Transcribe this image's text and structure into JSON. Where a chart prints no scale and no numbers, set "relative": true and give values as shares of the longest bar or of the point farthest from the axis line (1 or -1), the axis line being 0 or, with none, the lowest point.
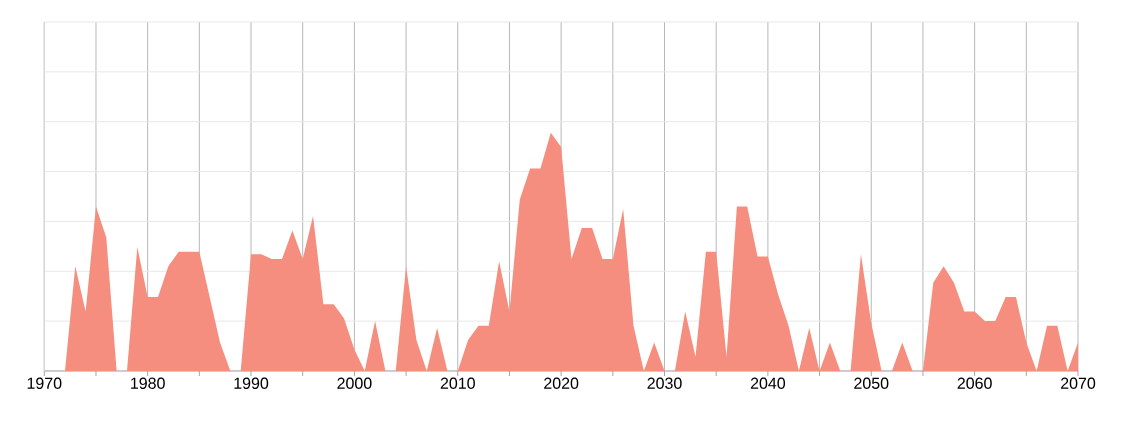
{
  "chart_data": {
    "type": "area",
    "relative": true,
    "color": "#f58e7e",
    "grid": true,
    "x": [
      1970,
      1971,
      1972,
      1973,
      1974,
      1975,
      1976,
      1977,
      1978,
      1979,
      1980,
      1981,
      1982,
      1983,
      1984,
      1985,
      1986,
      1987,
      1988,
      1989,
      1990,
      1991,
      1992,
      1993,
      1994,
      1995,
      1996,
      1997,
      1998,
      1999,
      2000,
      2001,
      2002,
      2003,
      2004,
      2005,
      2006,
      2007,
      2008,
      2009,
      2010,
      2011,
      2012,
      2013,
      2014,
      2015,
      2016,
      2017,
      2018,
      2019,
      2020,
      2021,
      2022,
      2023,
      2024,
      2025,
      2026,
      2027,
      2028,
      2029,
      2030,
      2031,
      2032,
      2033,
      2034,
      2035,
      2036,
      2037,
      2038,
      2039,
      2040,
      2041,
      2042,
      2043,
      2044,
      2045,
      2046,
      2047,
      2048,
      2049,
      2050,
      2051,
      2052,
      2053,
      2054,
      2055,
      2056,
      2057,
      2058,
      2059,
      2060,
      2061,
      2062,
      2063,
      2064,
      2065,
      2066,
      2067,
      2068,
      2069,
      2070
    ],
    "values": [
      0,
      0,
      0,
      0.44,
      0.25,
      0.69,
      0.56,
      0,
      0,
      0.52,
      0.31,
      0.31,
      0.44,
      0.5,
      0.5,
      0.5,
      0.31,
      0.12,
      0,
      0,
      0.49,
      0.49,
      0.47,
      0.47,
      0.59,
      0.47,
      0.65,
      0.28,
      0.28,
      0.22,
      0.09,
      0,
      0.21,
      0,
      0,
      0.44,
      0.13,
      0,
      0.18,
      0,
      0,
      0.13,
      0.19,
      0.19,
      0.46,
      0.25,
      0.72,
      0.85,
      0.85,
      1,
      0.94,
      0.47,
      0.6,
      0.6,
      0.47,
      0.47,
      0.68,
      0.19,
      0,
      0.12,
      0,
      0,
      0.25,
      0.06,
      0.5,
      0.5,
      0.06,
      0.69,
      0.69,
      0.48,
      0.48,
      0.32,
      0.19,
      0,
      0.18,
      0,
      0.12,
      0,
      0,
      0.49,
      0.2,
      0,
      0,
      0.12,
      0,
      0,
      0.37,
      0.44,
      0.37,
      0.25,
      0.25,
      0.21,
      0.21,
      0.31,
      0.31,
      0.12,
      0,
      0.19,
      0.19,
      0,
      0.12
    ],
    "xlim": [
      1970,
      2070
    ],
    "xticks": [
      1970,
      {
        "value": 1975,
        "label": null
      },
      1980,
      {
        "value": 1985,
        "label": null
      },
      1990,
      {
        "value": 1995,
        "label": null
      },
      2000,
      {
        "value": 2005,
        "label": null
      },
      2010,
      {
        "value": 2015,
        "label": null
      },
      2020,
      {
        "value": 2025,
        "label": null
      },
      2030,
      {
        "value": 2035,
        "label": null
      },
      2040,
      {
        "value": 2045,
        "label": null
      },
      2050,
      {
        "value": 2055,
        "label": null
      },
      2060,
      {
        "value": 2065,
        "label": null
      },
      2070
    ]
  }
}
